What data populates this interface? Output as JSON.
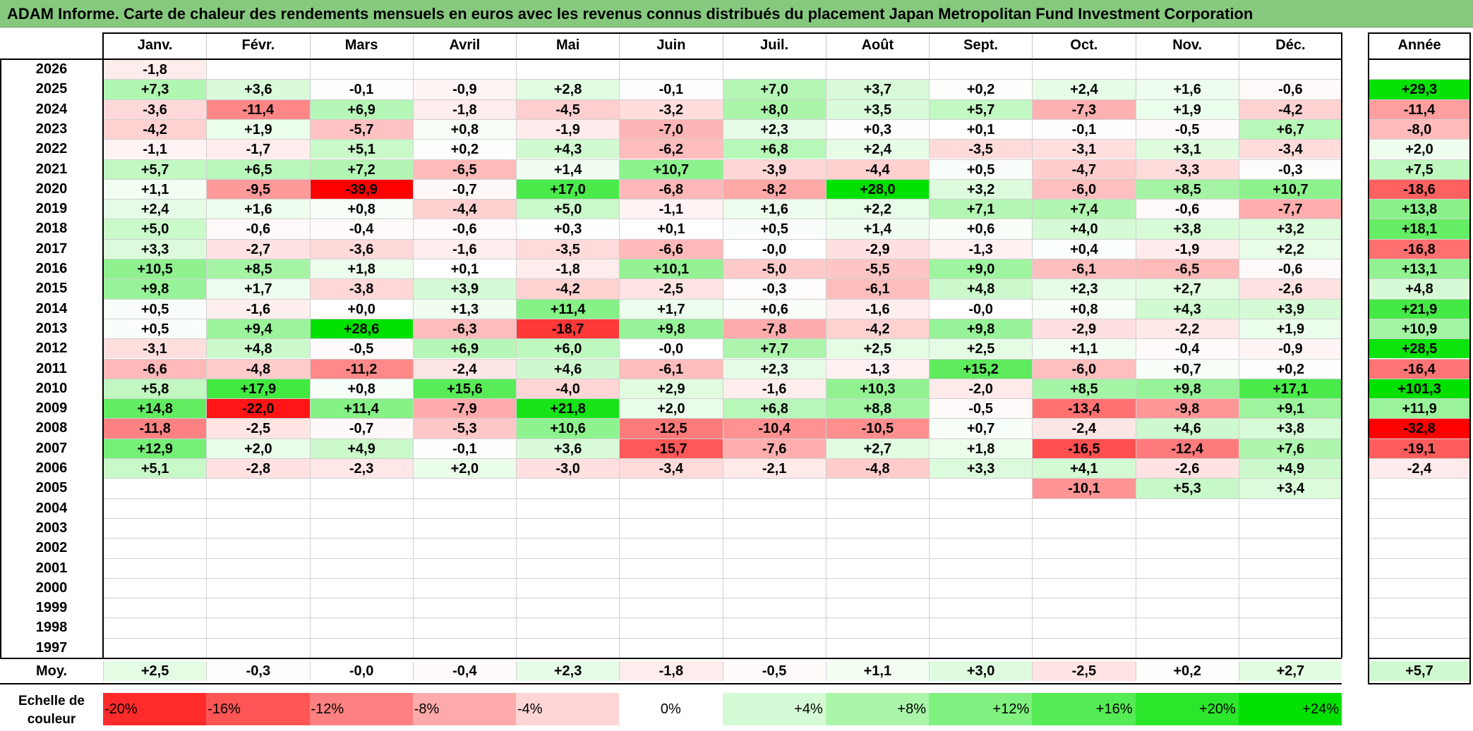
{
  "title": "ADAM Informe. Carte de chaleur des rendements mensuels en euros avec les revenus connus distribués du placement Japan Metropolitan Fund Investment Corporation",
  "colors": {
    "title_bg": "#86c97e",
    "negative_max": "#ff0000",
    "positive_max": "#00e000",
    "neutral": "#ffffff"
  },
  "chart_data": {
    "type": "heatmap",
    "title": "ADAM Informe. Carte de chaleur des rendements mensuels en euros avec les revenus connus distribués du placement Japan Metropolitan Fund Investment Corporation",
    "months": [
      "Janv.",
      "Févr.",
      "Mars",
      "Avril",
      "Mai",
      "Juin",
      "Juil.",
      "Août",
      "Sept.",
      "Oct.",
      "Nov.",
      "Déc."
    ],
    "year_label": "Année",
    "avg_label": "Moy.",
    "rows": [
      {
        "year": "2026",
        "values": [
          "-1,8",
          "",
          "",
          "",
          "",
          "",
          "",
          "",
          "",
          "",
          "",
          ""
        ],
        "annual": ""
      },
      {
        "year": "2025",
        "values": [
          "+7,3",
          "+3,6",
          "-0,1",
          "-0,9",
          "+2,8",
          "-0,1",
          "+7,0",
          "+3,7",
          "+0,2",
          "+2,4",
          "+1,6",
          "-0,6"
        ],
        "annual": "+29,3"
      },
      {
        "year": "2024",
        "values": [
          "-3,6",
          "-11,4",
          "+6,9",
          "-1,8",
          "-4,5",
          "-3,2",
          "+8,0",
          "+3,5",
          "+5,7",
          "-7,3",
          "+1,9",
          "-4,2"
        ],
        "annual": "-11,4"
      },
      {
        "year": "2023",
        "values": [
          "-4,2",
          "+1,9",
          "-5,7",
          "+0,8",
          "-1,9",
          "-7,0",
          "+2,3",
          "+0,3",
          "+0,1",
          "-0,1",
          "-0,5",
          "+6,7"
        ],
        "annual": "-8,0"
      },
      {
        "year": "2022",
        "values": [
          "-1,1",
          "-1,7",
          "+5,1",
          "+0,2",
          "+4,3",
          "-6,2",
          "+6,8",
          "+2,4",
          "-3,5",
          "-3,1",
          "+3,1",
          "-3,4"
        ],
        "annual": "+2,0"
      },
      {
        "year": "2021",
        "values": [
          "+5,7",
          "+6,5",
          "+7,2",
          "-6,5",
          "+1,4",
          "+10,7",
          "-3,9",
          "-4,4",
          "+0,5",
          "-4,7",
          "-3,3",
          "-0,3"
        ],
        "annual": "+7,5"
      },
      {
        "year": "2020",
        "values": [
          "+1,1",
          "-9,5",
          "-39,9",
          "-0,7",
          "+17,0",
          "-6,8",
          "-8,2",
          "+28,0",
          "+3,2",
          "-6,0",
          "+8,5",
          "+10,7"
        ],
        "annual": "-18,6"
      },
      {
        "year": "2019",
        "values": [
          "+2,4",
          "+1,6",
          "+0,8",
          "-4,4",
          "+5,0",
          "-1,1",
          "+1,6",
          "+2,2",
          "+7,1",
          "+7,4",
          "-0,6",
          "-7,7"
        ],
        "annual": "+13,8"
      },
      {
        "year": "2018",
        "values": [
          "+5,0",
          "-0,6",
          "-0,4",
          "-0,6",
          "+0,3",
          "+0,1",
          "+0,5",
          "+1,4",
          "+0,6",
          "+4,0",
          "+3,8",
          "+3,2"
        ],
        "annual": "+18,1"
      },
      {
        "year": "2017",
        "values": [
          "+3,3",
          "-2,7",
          "-3,6",
          "-1,6",
          "-3,5",
          "-6,6",
          "-0,0",
          "-2,9",
          "-1,3",
          "+0,4",
          "-1,9",
          "+2,2"
        ],
        "annual": "-16,8"
      },
      {
        "year": "2016",
        "values": [
          "+10,5",
          "+8,5",
          "+1,8",
          "+0,1",
          "-1,8",
          "+10,1",
          "-5,0",
          "-5,5",
          "+9,0",
          "-6,1",
          "-6,5",
          "-0,6"
        ],
        "annual": "+13,1"
      },
      {
        "year": "2015",
        "values": [
          "+9,8",
          "+1,7",
          "-3,8",
          "+3,9",
          "-4,2",
          "-2,5",
          "-0,3",
          "-6,1",
          "+4,8",
          "+2,3",
          "+2,7",
          "-2,6"
        ],
        "annual": "+4,8"
      },
      {
        "year": "2014",
        "values": [
          "+0,5",
          "-1,6",
          "+0,0",
          "+1,3",
          "+11,4",
          "+1,7",
          "+0,6",
          "-1,6",
          "-0,0",
          "+0,8",
          "+4,3",
          "+3,9"
        ],
        "annual": "+21,9"
      },
      {
        "year": "2013",
        "values": [
          "+0,5",
          "+9,4",
          "+28,6",
          "-6,3",
          "-18,7",
          "+9,8",
          "-7,8",
          "-4,2",
          "+9,8",
          "-2,9",
          "-2,2",
          "+1,9"
        ],
        "annual": "+10,9"
      },
      {
        "year": "2012",
        "values": [
          "-3,1",
          "+4,8",
          "-0,5",
          "+6,9",
          "+6,0",
          "-0,0",
          "+7,7",
          "+2,5",
          "+2,5",
          "+1,1",
          "-0,4",
          "-0,9"
        ],
        "annual": "+28,5"
      },
      {
        "year": "2011",
        "values": [
          "-6,6",
          "-4,8",
          "-11,2",
          "-2,4",
          "+4,6",
          "-6,1",
          "+2,3",
          "-1,3",
          "+15,2",
          "-6,0",
          "+0,7",
          "+0,2"
        ],
        "annual": "-16,4"
      },
      {
        "year": "2010",
        "values": [
          "+5,8",
          "+17,9",
          "+0,8",
          "+15,6",
          "-4,0",
          "+2,9",
          "-1,6",
          "+10,3",
          "-2,0",
          "+8,5",
          "+9,8",
          "+17,1"
        ],
        "annual": "+101,3"
      },
      {
        "year": "2009",
        "values": [
          "+14,8",
          "-22,0",
          "+11,4",
          "-7,9",
          "+21,8",
          "+2,0",
          "+6,8",
          "+8,8",
          "-0,5",
          "-13,4",
          "-9,8",
          "+9,1"
        ],
        "annual": "+11,9"
      },
      {
        "year": "2008",
        "values": [
          "-11,8",
          "-2,5",
          "-0,7",
          "-5,3",
          "+10,6",
          "-12,5",
          "-10,4",
          "-10,5",
          "+0,7",
          "-2,4",
          "+4,6",
          "+3,8"
        ],
        "annual": "-32,8"
      },
      {
        "year": "2007",
        "values": [
          "+12,9",
          "+2,0",
          "+4,9",
          "-0,1",
          "+3,6",
          "-15,7",
          "-7,6",
          "+2,7",
          "+1,8",
          "-16,5",
          "-12,4",
          "+7,6"
        ],
        "annual": "-19,1"
      },
      {
        "year": "2006",
        "values": [
          "+5,1",
          "-2,8",
          "-2,3",
          "+2,0",
          "-3,0",
          "-3,4",
          "-2,1",
          "-4,8",
          "+3,3",
          "+4,1",
          "-2,6",
          "+4,9"
        ],
        "annual": "-2,4"
      },
      {
        "year": "2005",
        "values": [
          "",
          "",
          "",
          "",
          "",
          "",
          "",
          "",
          "",
          "-10,1",
          "+5,3",
          "+3,4"
        ],
        "annual": ""
      },
      {
        "year": "2004",
        "values": [
          "",
          "",
          "",
          "",
          "",
          "",
          "",
          "",
          "",
          "",
          "",
          ""
        ],
        "annual": ""
      },
      {
        "year": "2003",
        "values": [
          "",
          "",
          "",
          "",
          "",
          "",
          "",
          "",
          "",
          "",
          "",
          ""
        ],
        "annual": ""
      },
      {
        "year": "2002",
        "values": [
          "",
          "",
          "",
          "",
          "",
          "",
          "",
          "",
          "",
          "",
          "",
          ""
        ],
        "annual": ""
      },
      {
        "year": "2001",
        "values": [
          "",
          "",
          "",
          "",
          "",
          "",
          "",
          "",
          "",
          "",
          "",
          ""
        ],
        "annual": ""
      },
      {
        "year": "2000",
        "values": [
          "",
          "",
          "",
          "",
          "",
          "",
          "",
          "",
          "",
          "",
          "",
          ""
        ],
        "annual": ""
      },
      {
        "year": "1999",
        "values": [
          "",
          "",
          "",
          "",
          "",
          "",
          "",
          "",
          "",
          "",
          "",
          ""
        ],
        "annual": ""
      },
      {
        "year": "1998",
        "values": [
          "",
          "",
          "",
          "",
          "",
          "",
          "",
          "",
          "",
          "",
          "",
          ""
        ],
        "annual": ""
      },
      {
        "year": "1997",
        "values": [
          "",
          "",
          "",
          "",
          "",
          "",
          "",
          "",
          "",
          "",
          "",
          ""
        ],
        "annual": ""
      }
    ],
    "averages": [
      "+2,5",
      "-0,3",
      "-0,0",
      "-0,4",
      "+2,3",
      "-1,8",
      "-0,5",
      "+1,1",
      "+3,0",
      "-2,5",
      "+0,2",
      "+2,7"
    ],
    "average_annual": "+5,7",
    "scale_label_line1": "Echelle de",
    "scale_label_line2": "couleur",
    "scale": [
      {
        "label": "-20%",
        "value": -20
      },
      {
        "label": "-16%",
        "value": -16
      },
      {
        "label": "-12%",
        "value": -12
      },
      {
        "label": "-8%",
        "value": -8
      },
      {
        "label": "-4%",
        "value": -4
      },
      {
        "label": "0%",
        "value": 0
      },
      {
        "label": "+4%",
        "value": 4
      },
      {
        "label": "+8%",
        "value": 8
      },
      {
        "label": "+12%",
        "value": 12
      },
      {
        "label": "+16%",
        "value": 16
      },
      {
        "label": "+20%",
        "value": 20
      },
      {
        "label": "+24%",
        "value": 24
      }
    ]
  }
}
